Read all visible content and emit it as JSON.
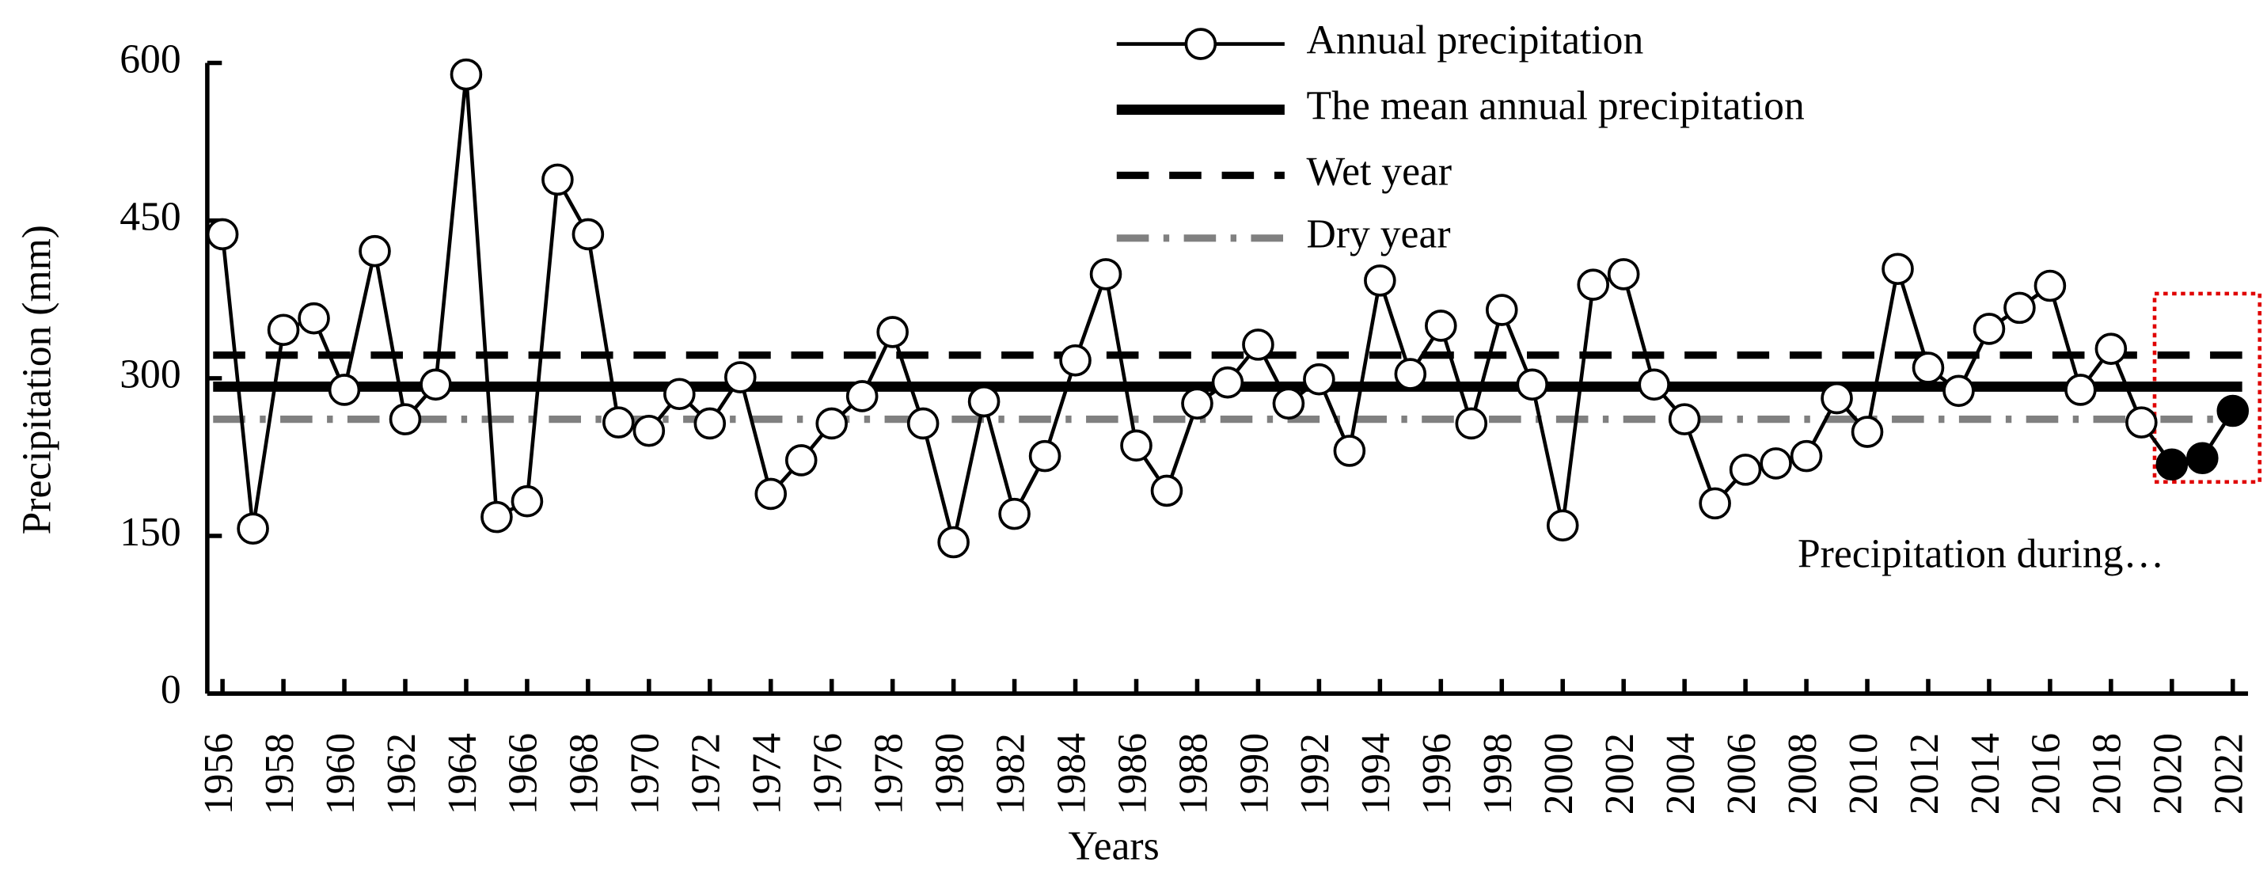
{
  "chart_data": {
    "type": "line",
    "x_label": "Years",
    "y_label": "Precipitation (mm)",
    "x": [
      1956,
      1957,
      1958,
      1959,
      1960,
      1961,
      1962,
      1963,
      1964,
      1965,
      1966,
      1967,
      1968,
      1969,
      1970,
      1971,
      1972,
      1973,
      1974,
      1975,
      1976,
      1977,
      1978,
      1979,
      1980,
      1981,
      1982,
      1983,
      1984,
      1985,
      1986,
      1987,
      1988,
      1989,
      1990,
      1991,
      1992,
      1993,
      1994,
      1995,
      1996,
      1997,
      1998,
      1999,
      2000,
      2001,
      2002,
      2003,
      2004,
      2005,
      2006,
      2007,
      2008,
      2009,
      2010,
      2011,
      2012,
      2013,
      2014,
      2015,
      2016,
      2017,
      2018,
      2019,
      2020,
      2021,
      2022
    ],
    "series": [
      {
        "name": "Annual precipitation",
        "color": "#000000",
        "values": [
          437,
          157,
          346,
          357,
          289,
          421,
          261,
          294,
          589,
          168,
          183,
          489,
          437,
          258,
          250,
          285,
          257,
          301,
          190,
          222,
          257,
          283,
          344,
          257,
          144,
          278,
          171,
          226,
          317,
          399,
          236,
          193,
          276,
          296,
          332,
          276,
          299,
          231,
          393,
          304,
          350,
          257,
          365,
          294,
          160,
          389,
          399,
          294,
          261,
          181,
          213,
          219,
          226,
          281,
          249,
          404,
          310,
          288,
          347,
          367,
          388,
          289,
          328,
          258,
          218,
          224,
          269
        ]
      }
    ],
    "highlight_x": [
      2020,
      2021,
      2022
    ],
    "reference_lines": [
      {
        "name": "The mean annual precipitation",
        "value": 292,
        "color": "#000000",
        "style": "solid"
      },
      {
        "name": "Wet year",
        "value": 322,
        "color": "#000000",
        "style": "dashed"
      },
      {
        "name": "Dry year",
        "value": 261,
        "color": "#808080",
        "style": "dashdot"
      }
    ],
    "annotation": "Precipitation during…",
    "xlim": [
      1955.5,
      2022.5
    ],
    "xticks": [
      1956,
      1958,
      1960,
      1962,
      1964,
      1966,
      1968,
      1970,
      1972,
      1974,
      1976,
      1978,
      1980,
      1982,
      1984,
      1986,
      1988,
      1990,
      1992,
      1994,
      1996,
      1998,
      2000,
      2002,
      2004,
      2006,
      2008,
      2010,
      2012,
      2014,
      2016,
      2018,
      2020,
      2022
    ],
    "ylim": [
      0,
      600
    ],
    "yticks": [
      0,
      150,
      300,
      450,
      600
    ],
    "legend": "top"
  }
}
